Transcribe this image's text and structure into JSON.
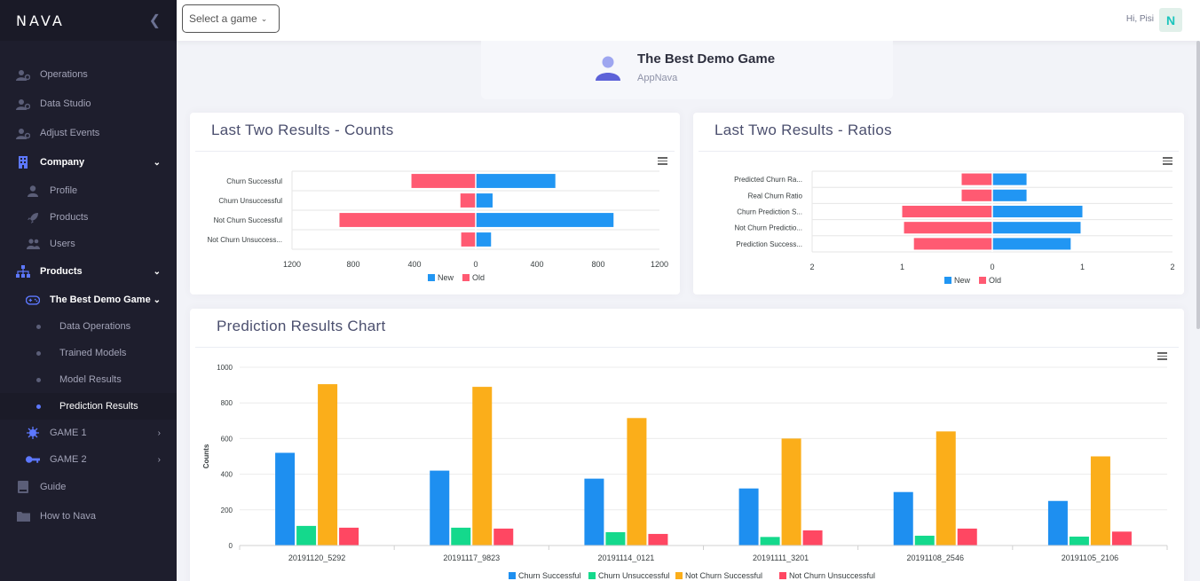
{
  "sidebar": {
    "logo": "NAVA",
    "items": [
      {
        "label": "Operations"
      },
      {
        "label": "Data Studio"
      },
      {
        "label": "Adjust Events"
      },
      {
        "label": "Company"
      },
      {
        "label": "Profile"
      },
      {
        "label": "Products"
      },
      {
        "label": "Users"
      },
      {
        "label": "Products"
      },
      {
        "label": "The Best Demo Game"
      },
      {
        "label": "Data Operations"
      },
      {
        "label": "Trained Models"
      },
      {
        "label": "Model Results"
      },
      {
        "label": "Prediction Results"
      },
      {
        "label": "GAME 1"
      },
      {
        "label": "GAME 2"
      },
      {
        "label": "Guide"
      },
      {
        "label": "How to Nava"
      }
    ]
  },
  "header": {
    "game_select": "Select a game",
    "greeting": "Hi, Pisi",
    "avatar_letter": "N"
  },
  "game": {
    "name": "The Best Demo Game",
    "org": "AppNava"
  },
  "cards": {
    "counts_title": "Last Two Results - Counts",
    "ratios_title": "Last Two Results - Ratios",
    "prediction_title": "Prediction Results Chart"
  },
  "colors": {
    "new": "#2196f3",
    "old": "#ff5a72",
    "churn_successful": "#1e8ff0",
    "churn_unsuccessful": "#14d98c",
    "not_churn_successful": "#fbae1a",
    "not_churn_unsuccessful": "#ff4762"
  },
  "chart_data": [
    {
      "type": "bar",
      "orientation": "horizontal",
      "categories": [
        "Churn Successful",
        "Churn Unsuccessful",
        "Not Churn Successful",
        "Not Churn Unsuccess..."
      ],
      "series": [
        {
          "name": "New",
          "values": [
            520,
            110,
            900,
            100
          ]
        },
        {
          "name": "Old",
          "values": [
            -420,
            -100,
            -890,
            -95
          ]
        }
      ],
      "xlim": [
        -1200,
        1200
      ],
      "xticks": [
        "1200",
        "800",
        "400",
        "0",
        "400",
        "800",
        "1200"
      ],
      "legend": "bottom"
    },
    {
      "type": "bar",
      "orientation": "horizontal",
      "categories": [
        "Predicted Churn Ra...",
        "Real Churn Ratio",
        "Churn Prediction S...",
        "Not Churn Predictio...",
        "Prediction Success..."
      ],
      "series": [
        {
          "name": "New",
          "values": [
            0.38,
            0.38,
            1.0,
            0.98,
            0.87
          ]
        },
        {
          "name": "Old",
          "values": [
            -0.34,
            -0.34,
            -1.0,
            -0.98,
            -0.87
          ]
        }
      ],
      "xlim": [
        -2,
        2
      ],
      "xticks": [
        "2",
        "1",
        "0",
        "1",
        "2"
      ],
      "legend": "bottom"
    },
    {
      "type": "bar",
      "categories": [
        "20191120_5292",
        "20191117_9823",
        "20191114_0121",
        "20191111_3201",
        "20191108_2546",
        "20191105_2106"
      ],
      "series": [
        {
          "name": "Churn Successful",
          "values": [
            520,
            420,
            375,
            320,
            300,
            250
          ]
        },
        {
          "name": "Churn Unsuccessful",
          "values": [
            110,
            100,
            75,
            48,
            55,
            50
          ]
        },
        {
          "name": "Not Churn Successful",
          "values": [
            905,
            890,
            715,
            600,
            640,
            500
          ]
        },
        {
          "name": "Not Churn Unsuccessful",
          "values": [
            100,
            95,
            65,
            85,
            95,
            78
          ]
        }
      ],
      "ylabel": "Counts",
      "ylim": [
        0,
        1000
      ],
      "yticks": [
        "0",
        "200",
        "400",
        "600",
        "800",
        "1000"
      ],
      "grid": true,
      "legend": "bottom"
    }
  ]
}
